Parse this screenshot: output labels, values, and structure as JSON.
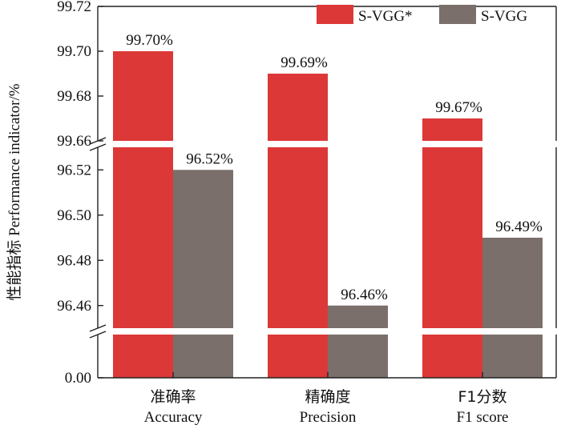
{
  "chart_data": {
    "type": "bar",
    "ylabel": "性能指标 Performance indicator/%",
    "categories": [
      {
        "zh": "准确率",
        "en": "Accuracy"
      },
      {
        "zh": "精确度",
        "en": "Precision"
      },
      {
        "zh": "F1分数",
        "en": "F1 score"
      }
    ],
    "series": [
      {
        "name": "S-VGG*",
        "color": "#dc3838",
        "values": [
          99.7,
          99.69,
          99.67
        ],
        "labels": [
          "99.70%",
          "99.69%",
          "99.67%"
        ]
      },
      {
        "name": "S-VGG",
        "color": "#7a6f6a",
        "values": [
          96.52,
          96.46,
          96.49
        ],
        "labels": [
          "96.52%",
          "96.46%",
          "96.49%"
        ]
      }
    ],
    "axis_segments": [
      {
        "range": [
          99.66,
          99.72
        ],
        "ticks": [
          "99.66",
          "99.68",
          "99.70",
          "99.72"
        ]
      },
      {
        "range": [
          96.45,
          96.53
        ],
        "ticks": [
          "96.46",
          "96.48",
          "96.50",
          "96.52"
        ]
      },
      {
        "range": [
          0,
          1
        ],
        "ticks": [
          "0.00"
        ]
      }
    ],
    "legend_position": "top-right",
    "grid": false
  }
}
